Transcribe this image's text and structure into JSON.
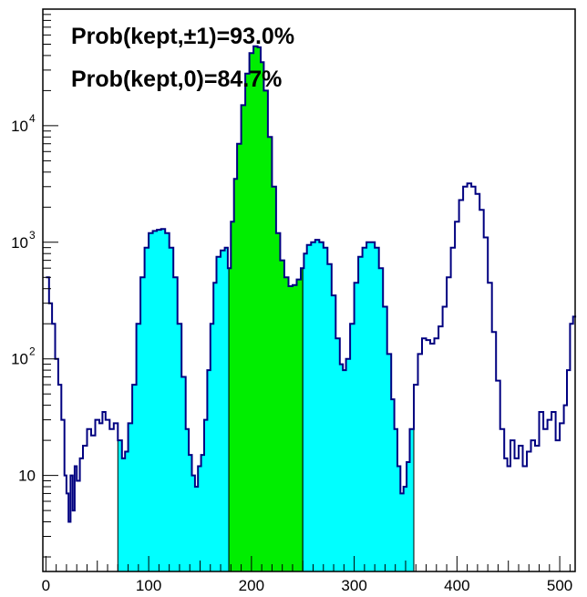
{
  "chart_data": {
    "type": "area",
    "title": "",
    "xlabel": "",
    "ylabel": "",
    "xlim": [
      -3,
      515
    ],
    "ylim": [
      1.5,
      100000
    ],
    "yscale": "log",
    "grid": false,
    "legend": "none",
    "annotations": [
      {
        "text": "Prob(kept,±1)=93.0%"
      },
      {
        "text": "Prob(kept,0)=84.7%"
      }
    ],
    "x_ticks": [
      0,
      100,
      200,
      300,
      400,
      500
    ],
    "x_tick_labels": [
      "0",
      "100",
      "200",
      "300",
      "400",
      "500"
    ],
    "y_ticks": [
      {
        "value": 10,
        "base": "10",
        "exp": ""
      },
      {
        "value": 100,
        "base": "10",
        "exp": "2"
      },
      {
        "value": 1000,
        "base": "10",
        "exp": "3"
      },
      {
        "value": 10000,
        "base": "10",
        "exp": "4"
      }
    ],
    "regions": [
      {
        "name": "kept ±1 (lower)",
        "x_range": [
          70,
          178
        ],
        "color": "#00ffff"
      },
      {
        "name": "kept 0",
        "x_range": [
          178,
          250
        ],
        "color": "#00ee00"
      },
      {
        "name": "kept ±1 (upper)",
        "x_range": [
          250,
          358
        ],
        "color": "#00ffff"
      }
    ],
    "line_color": "#000080",
    "series": [
      {
        "values": [
          [
            0,
            500
          ],
          [
            3,
            300
          ],
          [
            6,
            200
          ],
          [
            9,
            100
          ],
          [
            12,
            60
          ],
          [
            15,
            30
          ],
          [
            18,
            10
          ],
          [
            20,
            7
          ],
          [
            22,
            4
          ],
          [
            24,
            10
          ],
          [
            26,
            5
          ],
          [
            28,
            12
          ],
          [
            30,
            9
          ],
          [
            33,
            14
          ],
          [
            36,
            18
          ],
          [
            40,
            25
          ],
          [
            44,
            22
          ],
          [
            48,
            30
          ],
          [
            52,
            28
          ],
          [
            55,
            35
          ],
          [
            58,
            30
          ],
          [
            62,
            25
          ],
          [
            66,
            28
          ],
          [
            70,
            20
          ],
          [
            74,
            14
          ],
          [
            77,
            16
          ],
          [
            80,
            28
          ],
          [
            84,
            60
          ],
          [
            88,
            200
          ],
          [
            92,
            500
          ],
          [
            96,
            900
          ],
          [
            100,
            1200
          ],
          [
            104,
            1250
          ],
          [
            108,
            1280
          ],
          [
            112,
            1300
          ],
          [
            116,
            1200
          ],
          [
            120,
            900
          ],
          [
            124,
            500
          ],
          [
            128,
            200
          ],
          [
            132,
            70
          ],
          [
            136,
            25
          ],
          [
            139,
            15
          ],
          [
            142,
            10
          ],
          [
            145,
            8
          ],
          [
            148,
            12
          ],
          [
            151,
            15
          ],
          [
            154,
            30
          ],
          [
            157,
            80
          ],
          [
            160,
            200
          ],
          [
            163,
            450
          ],
          [
            166,
            750
          ],
          [
            170,
            850
          ],
          [
            174,
            900
          ],
          [
            177,
            600
          ],
          [
            180,
            1500
          ],
          [
            183,
            3500
          ],
          [
            186,
            7000
          ],
          [
            190,
            15000
          ],
          [
            194,
            28000
          ],
          [
            198,
            42000
          ],
          [
            202,
            48000
          ],
          [
            206,
            47000
          ],
          [
            209,
            35000
          ],
          [
            212,
            20000
          ],
          [
            216,
            8000
          ],
          [
            220,
            3000
          ],
          [
            224,
            1200
          ],
          [
            228,
            700
          ],
          [
            232,
            500
          ],
          [
            236,
            420
          ],
          [
            240,
            430
          ],
          [
            244,
            480
          ],
          [
            248,
            600
          ],
          [
            251,
            800
          ],
          [
            254,
            950
          ],
          [
            258,
            1000
          ],
          [
            262,
            1050
          ],
          [
            266,
            1000
          ],
          [
            270,
            900
          ],
          [
            274,
            650
          ],
          [
            278,
            350
          ],
          [
            282,
            150
          ],
          [
            286,
            90
          ],
          [
            289,
            80
          ],
          [
            292,
            100
          ],
          [
            296,
            200
          ],
          [
            300,
            450
          ],
          [
            304,
            750
          ],
          [
            308,
            900
          ],
          [
            312,
            1000
          ],
          [
            316,
            1000
          ],
          [
            320,
            900
          ],
          [
            324,
            600
          ],
          [
            328,
            280
          ],
          [
            332,
            110
          ],
          [
            336,
            45
          ],
          [
            339,
            25
          ],
          [
            342,
            12
          ],
          [
            345,
            7
          ],
          [
            348,
            8
          ],
          [
            351,
            13
          ],
          [
            354,
            25
          ],
          [
            358,
            60
          ],
          [
            362,
            110
          ],
          [
            366,
            150
          ],
          [
            370,
            145
          ],
          [
            374,
            135
          ],
          [
            378,
            150
          ],
          [
            382,
            190
          ],
          [
            386,
            280
          ],
          [
            390,
            500
          ],
          [
            394,
            900
          ],
          [
            398,
            1500
          ],
          [
            402,
            2300
          ],
          [
            406,
            3000
          ],
          [
            410,
            3200
          ],
          [
            414,
            3000
          ],
          [
            418,
            2600
          ],
          [
            422,
            1900
          ],
          [
            426,
            1100
          ],
          [
            430,
            450
          ],
          [
            434,
            170
          ],
          [
            438,
            65
          ],
          [
            442,
            25
          ],
          [
            446,
            14
          ],
          [
            449,
            12
          ],
          [
            452,
            20
          ],
          [
            456,
            14
          ],
          [
            460,
            18
          ],
          [
            464,
            12
          ],
          [
            468,
            16
          ],
          [
            472,
            20
          ],
          [
            476,
            18
          ],
          [
            480,
            35
          ],
          [
            484,
            25
          ],
          [
            488,
            30
          ],
          [
            492,
            35
          ],
          [
            496,
            20
          ],
          [
            500,
            28
          ],
          [
            504,
            40
          ],
          [
            507,
            80
          ],
          [
            510,
            200
          ],
          [
            513,
            230
          ]
        ]
      }
    ]
  }
}
